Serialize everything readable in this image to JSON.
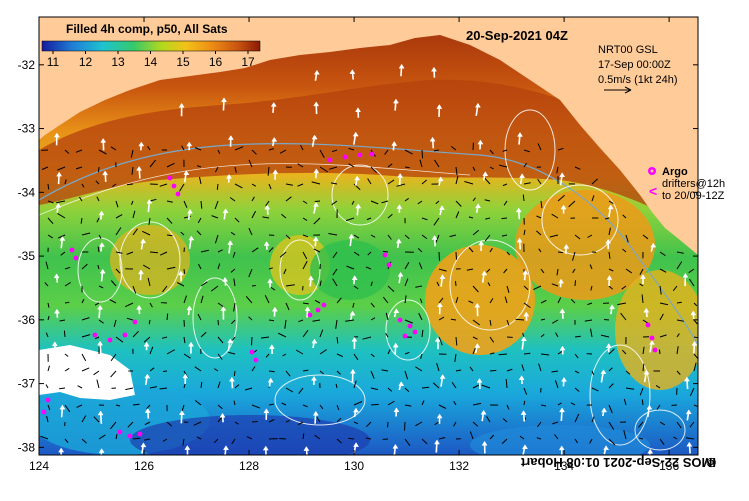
{
  "header": {
    "product_title": "Filled 4h comp, p50, All Sats",
    "date_label": "20-Sep-2021 04Z"
  },
  "colorbar": {
    "ticks": [
      "11",
      "12",
      "13",
      "14",
      "15",
      "16",
      "17"
    ],
    "units": ""
  },
  "current_info": {
    "model_label": "NRT00 GSL",
    "model_date": "17-Sep 00:00Z",
    "scale_label": "0.5m/s (1kt 24h)"
  },
  "legend": {
    "argo_label": "Argo",
    "drifters_label": "drifters@12h",
    "drifters_date": "to 20/09-12Z",
    "argo_color": "#ff00ff"
  },
  "axes": {
    "x_ticks": [
      "124",
      "126",
      "128",
      "130",
      "132",
      "134",
      "136"
    ],
    "y_ticks": [
      "-32",
      "-33",
      "-34",
      "-35",
      "-36",
      "-37",
      "-38"
    ]
  },
  "credit": {
    "copyright": "©",
    "text": "IMOS 22-Sep-2021 01:08 Hobart"
  },
  "colors": {
    "land": "#ffcc99",
    "no_data": "#ffffff",
    "drifter": "#ff00ff"
  }
}
